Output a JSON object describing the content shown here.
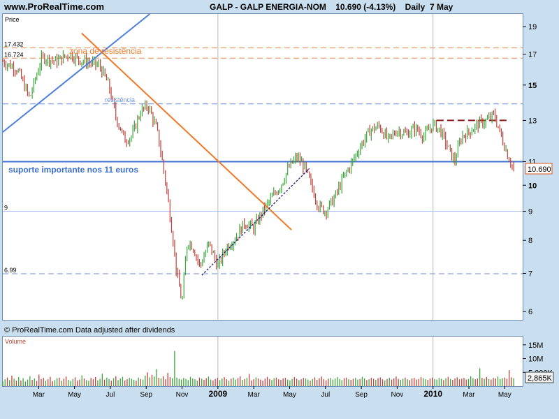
{
  "header": {
    "site": "www.ProRealTime.com",
    "title": "GALP - GALP ENERGIA-NOM    10.690 (-4.13%)    Daily  7 May"
  },
  "price_panel": {
    "label": "Price",
    "copyright": "© ProRealTime.com  Data adjusted after dividends",
    "last_price_badge": "10.690"
  },
  "volume_panel": {
    "label": "Volume",
    "last_volume_badge": "2,865K"
  },
  "annotations": {
    "resistance_zone": "zona de resistência",
    "resistance": "resistência",
    "support": "suporte importante nos 11 euros"
  },
  "colors": {
    "background": "#c9dff0",
    "panel": "#ffffff",
    "candle_up": "#3aa63a",
    "candle_down": "#c0413a",
    "trend_blue": "#4a7fe0",
    "trend_orange": "#f07828",
    "support_line": "#3f6fd0",
    "resistance_dashed": "#e08a50",
    "resistance_dark": "#8b1a1a"
  },
  "chart_data": {
    "type": "line",
    "title": "GALP - GALP ENERGIA-NOM",
    "price_scale": "log",
    "ylim": [
      5.8,
      20
    ],
    "y_ticks": [
      6,
      7,
      8,
      9,
      10,
      11,
      13,
      15,
      17,
      19
    ],
    "level_labels": [
      "17.432",
      "16.724",
      "9",
      "6.99"
    ],
    "x_ticks": [
      "Mar",
      "May",
      "Jul",
      "Sep",
      "Nov",
      "2009",
      "Mar",
      "May",
      "Jul",
      "Sep",
      "Nov",
      "2010",
      "Mar",
      "May"
    ],
    "x_tick_months": [
      2,
      4,
      6,
      8,
      10,
      12,
      14,
      16,
      18,
      20,
      22,
      24,
      26,
      28
    ],
    "series": [
      {
        "name": "",
        "x_months": [
          0,
          0.8,
          1.5,
          2.2,
          3.0,
          3.7,
          4.3,
          4.9,
          5.4,
          5.9,
          6.3,
          6.8,
          7.2,
          7.7,
          8.1,
          8.6,
          9.0,
          9.4,
          9.7,
          10.0,
          10.3,
          10.6,
          11.0,
          11.5,
          12.0,
          12.5,
          13.0,
          13.5,
          14.0,
          14.5,
          15.0,
          15.5,
          16.0,
          16.4,
          16.8,
          17.2,
          17.6,
          18.0,
          18.5,
          19.0,
          19.5,
          20.0,
          20.5,
          21.0,
          21.5,
          22.0,
          22.5,
          23.0,
          23.5,
          24.0,
          24.4,
          24.8,
          25.2,
          25.6,
          26.0,
          26.5,
          27.0,
          27.4,
          27.8,
          28.2,
          28.5
        ],
        "values": [
          16.5,
          16.0,
          14.2,
          16.8,
          16.5,
          17.0,
          16.6,
          16.4,
          16.2,
          15.0,
          13.2,
          12.0,
          12.2,
          13.5,
          13.8,
          12.5,
          10.5,
          8.5,
          7.0,
          6.2,
          8.0,
          7.8,
          7.2,
          7.9,
          7.2,
          7.8,
          8.1,
          8.6,
          8.4,
          9.0,
          9.5,
          10.0,
          10.8,
          11.2,
          10.8,
          10.0,
          9.2,
          9.0,
          9.5,
          10.3,
          11.0,
          11.8,
          12.5,
          12.7,
          12.0,
          12.5,
          12.3,
          12.6,
          12.2,
          12.8,
          12.5,
          11.7,
          11.0,
          12.2,
          12.4,
          12.8,
          13.0,
          13.3,
          12.2,
          11.2,
          10.69
        ]
      }
    ],
    "horizontal_levels": [
      {
        "value": 17.432,
        "style": "dashed-orange"
      },
      {
        "value": 16.724,
        "style": "dashed-orange"
      },
      {
        "value": 13.9,
        "style": "dashed-blue"
      },
      {
        "value": 11.0,
        "style": "solid-blue"
      },
      {
        "value": 9.0,
        "style": "solid-lightblue"
      },
      {
        "value": 6.99,
        "style": "dashed-blue"
      },
      {
        "value": 13.0,
        "style": "dashed-darkred",
        "x_months": [
          24.2,
          28.3
        ]
      }
    ],
    "trendlines": [
      {
        "style": "solid-blue",
        "points": [
          [
            0,
            12.4
          ],
          [
            8.2,
            20
          ]
        ]
      },
      {
        "style": "solid-orange",
        "points": [
          [
            4.4,
            18.5
          ],
          [
            16.1,
            8.35
          ]
        ]
      },
      {
        "style": "dotted-navy",
        "points": [
          [
            11.1,
            6.95
          ],
          [
            17.1,
            10.7
          ]
        ]
      }
    ],
    "volume_axis": {
      "ticks": [
        "15M",
        "10M",
        "5,000K"
      ],
      "ylim": [
        0,
        18
      ]
    },
    "volume_values_millions": [
      1.8,
      2.5,
      3.1,
      2.2,
      3.8,
      2.7,
      2.0,
      3.3,
      2.1,
      2.9,
      1.7,
      2.4,
      3.6,
      2.3,
      2.8,
      1.9,
      4.2,
      2.6,
      3.0,
      2.0,
      2.5,
      3.4,
      1.8,
      2.2,
      2.9,
      3.1,
      2.0,
      2.7,
      3.5,
      2.3,
      1.9,
      2.6,
      3.2,
      2.1,
      2.4,
      3.9,
      2.8,
      2.2,
      2.0,
      3.0,
      2.5,
      3.3,
      2.1,
      2.7,
      4.5,
      2.4,
      3.1,
      2.6,
      2.0,
      2.9,
      3.6,
      2.2,
      2.8,
      3.4,
      2.1,
      2.5,
      3.0,
      2.7,
      2.3,
      2.0,
      3.1,
      2.6,
      2.4,
      3.8,
      5.0,
      3.2,
      4.1,
      3.5,
      6.2,
      3.0,
      2.8,
      3.6,
      2.5,
      4.8,
      3.3,
      2.9,
      12.8,
      3.1,
      2.7,
      2.4,
      3.0,
      2.6,
      2.2,
      3.4,
      2.8,
      2.5,
      2.0,
      3.1,
      2.7,
      2.3,
      2.9,
      3.5,
      2.4,
      2.1,
      2.6,
      3.0,
      2.2,
      2.8,
      3.3,
      2.5,
      2.0,
      2.7,
      3.1,
      2.4,
      2.9,
      3.6,
      2.3,
      2.6,
      3.0,
      4.4,
      2.1,
      2.5,
      3.2,
      2.8,
      2.4,
      2.0,
      2.7,
      3.4,
      2.6,
      2.2,
      2.9,
      3.1,
      2.5,
      2.3,
      2.8,
      3.0,
      2.4,
      2.1,
      2.6,
      3.3,
      2.7,
      2.2,
      2.5,
      3.0,
      2.8,
      2.4,
      2.0,
      2.6,
      3.2,
      2.3,
      2.9,
      3.5,
      2.5,
      2.1,
      2.7,
      3.0,
      2.4,
      2.8,
      3.3,
      2.6,
      2.2,
      2.9,
      3.1,
      2.5,
      2.3,
      2.7,
      3.0,
      2.4,
      2.6,
      3.4,
      2.8,
      2.2,
      2.5,
      3.0,
      2.7,
      2.3,
      2.9,
      3.2,
      2.5,
      2.1,
      2.6,
      3.0,
      2.4,
      2.8,
      3.5,
      2.6,
      2.3,
      2.7,
      3.1,
      2.5,
      2.2,
      2.8,
      3.0,
      2.4,
      2.6,
      3.3,
      2.9,
      2.5,
      2.3,
      2.8,
      3.1,
      2.6,
      2.4,
      3.0,
      2.7,
      2.2,
      2.9,
      3.4,
      2.6,
      2.3,
      2.8,
      3.2,
      2.5,
      2.7,
      3.0,
      2.4,
      2.6,
      3.6,
      2.9,
      2.5,
      2.8,
      6.5,
      3.0,
      2.7,
      3.3,
      2.6,
      2.4,
      3.0,
      2.8,
      3.5,
      2.6,
      2.9,
      3.1,
      2.7,
      5.8,
      3.2,
      2.9
    ]
  }
}
